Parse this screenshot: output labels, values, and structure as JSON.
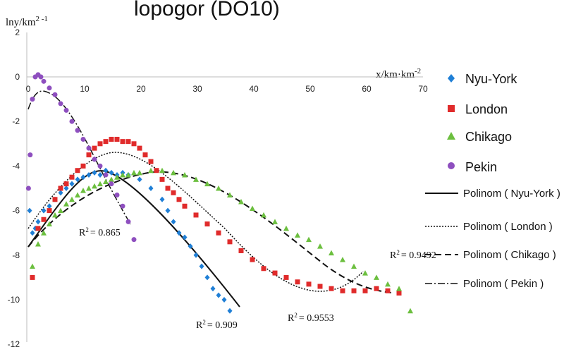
{
  "chart_data": {
    "type": "scatter",
    "title_fragment": "lopogor (DO10)",
    "ylabel": "lny/km",
    "ylabel_sup": "2 -1",
    "xlabel": "x/km·km",
    "xlabel_sup": "-2",
    "xlim": [
      0,
      70
    ],
    "ylim": [
      -12,
      2
    ],
    "x_ticks": [
      "0",
      "10",
      "20",
      "30",
      "40",
      "50",
      "60",
      "70"
    ],
    "y_ticks": [
      "2",
      "0",
      "-2",
      "-4",
      "-6",
      "-8",
      "-10",
      "-12"
    ],
    "grid": false,
    "legend_position": "right",
    "series": [
      {
        "name": "Nyu-York",
        "marker": "diamond",
        "color": "#1f7fd6",
        "points": [
          [
            0.5,
            -6.0
          ],
          [
            1,
            -7.0
          ],
          [
            1.5,
            -6.8
          ],
          [
            2,
            -6.5
          ],
          [
            3,
            -6.0
          ],
          [
            4,
            -5.8
          ],
          [
            5,
            -5.5
          ],
          [
            6,
            -5.2
          ],
          [
            7,
            -5.0
          ],
          [
            8,
            -4.8
          ],
          [
            9,
            -4.6
          ],
          [
            10,
            -4.5
          ],
          [
            11,
            -4.4
          ],
          [
            12,
            -4.3
          ],
          [
            13,
            -4.4
          ],
          [
            14,
            -4.2
          ],
          [
            15,
            -4.3
          ],
          [
            16,
            -4.4
          ],
          [
            17,
            -4.3
          ],
          [
            18,
            -4.4
          ],
          [
            20,
            -4.6
          ],
          [
            22,
            -5.0
          ],
          [
            24,
            -5.5
          ],
          [
            25,
            -6.0
          ],
          [
            26,
            -6.5
          ],
          [
            27,
            -7.0
          ],
          [
            28,
            -7.2
          ],
          [
            29,
            -7.6
          ],
          [
            30,
            -8.0
          ],
          [
            31,
            -8.5
          ],
          [
            32,
            -9.0
          ],
          [
            33,
            -9.5
          ],
          [
            34,
            -9.8
          ],
          [
            35,
            -10.0
          ],
          [
            36,
            -10.5
          ]
        ]
      },
      {
        "name": "London",
        "marker": "square",
        "color": "#e02b2b",
        "points": [
          [
            1,
            -9.0
          ],
          [
            2,
            -6.8
          ],
          [
            3,
            -6.4
          ],
          [
            4,
            -6.0
          ],
          [
            5,
            -5.5
          ],
          [
            6,
            -5.0
          ],
          [
            7,
            -4.8
          ],
          [
            8,
            -4.5
          ],
          [
            9,
            -4.2
          ],
          [
            10,
            -4.0
          ],
          [
            11,
            -3.5
          ],
          [
            12,
            -3.2
          ],
          [
            13,
            -3.0
          ],
          [
            14,
            -2.9
          ],
          [
            15,
            -2.8
          ],
          [
            16,
            -2.8
          ],
          [
            17,
            -2.9
          ],
          [
            18,
            -2.9
          ],
          [
            19,
            -3.0
          ],
          [
            20,
            -3.2
          ],
          [
            21,
            -3.5
          ],
          [
            22,
            -3.8
          ],
          [
            23,
            -4.2
          ],
          [
            24,
            -4.6
          ],
          [
            25,
            -5.0
          ],
          [
            26,
            -5.2
          ],
          [
            27,
            -5.5
          ],
          [
            28,
            -5.8
          ],
          [
            30,
            -6.2
          ],
          [
            32,
            -6.6
          ],
          [
            34,
            -7.0
          ],
          [
            36,
            -7.4
          ],
          [
            38,
            -7.8
          ],
          [
            40,
            -8.2
          ],
          [
            42,
            -8.6
          ],
          [
            44,
            -8.8
          ],
          [
            46,
            -9.0
          ],
          [
            48,
            -9.2
          ],
          [
            50,
            -9.3
          ],
          [
            52,
            -9.4
          ],
          [
            54,
            -9.5
          ],
          [
            56,
            -9.6
          ],
          [
            58,
            -9.6
          ],
          [
            60,
            -9.6
          ],
          [
            62,
            -9.5
          ],
          [
            64,
            -9.6
          ],
          [
            66,
            -9.7
          ]
        ]
      },
      {
        "name": "Chikago",
        "marker": "triangle",
        "color": "#6cbf3f",
        "points": [
          [
            1,
            -8.5
          ],
          [
            2,
            -7.5
          ],
          [
            3,
            -7.0
          ],
          [
            4,
            -6.6
          ],
          [
            5,
            -6.2
          ],
          [
            6,
            -6.0
          ],
          [
            7,
            -5.7
          ],
          [
            8,
            -5.5
          ],
          [
            9,
            -5.3
          ],
          [
            10,
            -5.1
          ],
          [
            11,
            -5.0
          ],
          [
            12,
            -4.9
          ],
          [
            13,
            -4.8
          ],
          [
            14,
            -4.7
          ],
          [
            15,
            -4.6
          ],
          [
            16,
            -4.5
          ],
          [
            17,
            -4.4
          ],
          [
            18,
            -4.4
          ],
          [
            19,
            -4.3
          ],
          [
            20,
            -4.3
          ],
          [
            22,
            -4.2
          ],
          [
            24,
            -4.2
          ],
          [
            26,
            -4.3
          ],
          [
            28,
            -4.4
          ],
          [
            30,
            -4.6
          ],
          [
            32,
            -4.8
          ],
          [
            34,
            -5.0
          ],
          [
            36,
            -5.3
          ],
          [
            38,
            -5.6
          ],
          [
            40,
            -5.9
          ],
          [
            42,
            -6.2
          ],
          [
            44,
            -6.5
          ],
          [
            46,
            -6.8
          ],
          [
            48,
            -7.1
          ],
          [
            50,
            -7.3
          ],
          [
            52,
            -7.6
          ],
          [
            54,
            -7.9
          ],
          [
            56,
            -8.2
          ],
          [
            58,
            -8.5
          ],
          [
            60,
            -8.8
          ],
          [
            62,
            -9.0
          ],
          [
            64,
            -9.3
          ],
          [
            66,
            -9.5
          ],
          [
            68,
            -10.5
          ]
        ]
      },
      {
        "name": "Pekin",
        "marker": "circle",
        "color": "#8e4fbf",
        "points": [
          [
            0.3,
            -5.0
          ],
          [
            0.6,
            -3.5
          ],
          [
            1,
            -1.0
          ],
          [
            1.5,
            0.0
          ],
          [
            2,
            0.1
          ],
          [
            2.5,
            0.0
          ],
          [
            3,
            -0.2
          ],
          [
            4,
            -0.5
          ],
          [
            5,
            -0.8
          ],
          [
            6,
            -1.2
          ],
          [
            7,
            -1.5
          ],
          [
            8,
            -2.0
          ],
          [
            9,
            -2.4
          ],
          [
            10,
            -2.8
          ],
          [
            11,
            -3.2
          ],
          [
            12,
            -3.7
          ],
          [
            13,
            -4.0
          ],
          [
            14,
            -4.4
          ],
          [
            15,
            -4.8
          ],
          [
            16,
            -5.3
          ],
          [
            17,
            -5.8
          ],
          [
            18,
            -6.5
          ],
          [
            19,
            -7.3
          ]
        ]
      }
    ],
    "trendlines": [
      {
        "name": "Polinom ( Nyu-York )",
        "style": "solid",
        "r2_label": "R",
        "r2_value": "= 0.909"
      },
      {
        "name": "Polinom ( London )",
        "style": "dotted",
        "r2_label": "R",
        "r2_value": "= 0.9553"
      },
      {
        "name": "Polinom ( Chikago )",
        "style": "dashed",
        "r2_label": "R",
        "r2_value": "= 0.9492"
      },
      {
        "name": "Polinom ( Pekin )",
        "style": "dashdot",
        "r2_label": "R",
        "r2_value": "= 0.865"
      }
    ]
  }
}
